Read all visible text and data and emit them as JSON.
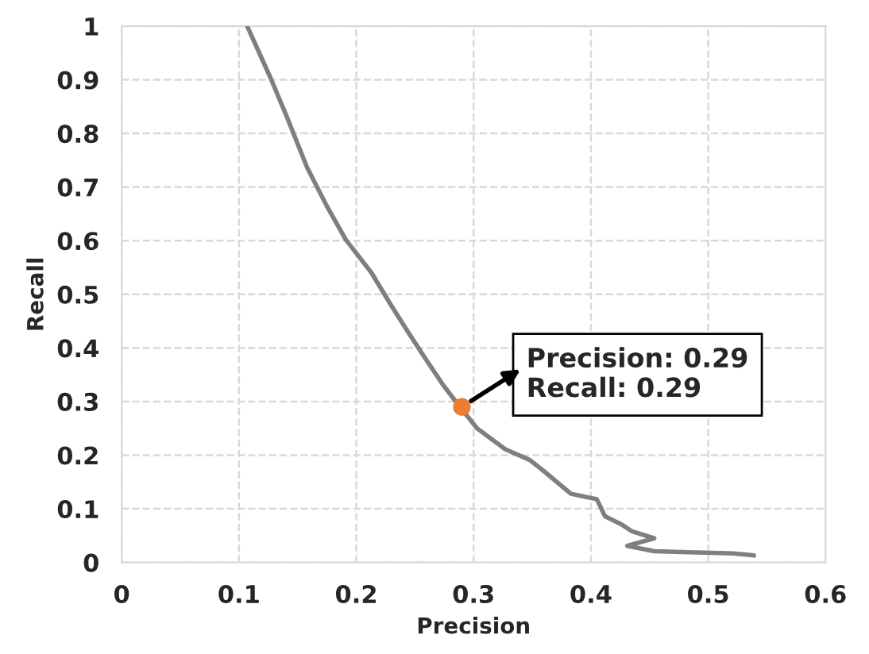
{
  "chart_data": {
    "type": "line",
    "xlabel": "Precision",
    "ylabel": "Recall",
    "xlim": [
      0,
      0.6
    ],
    "xticks": [
      0,
      0.1,
      0.2,
      0.3,
      0.4,
      0.5,
      0.6
    ],
    "ylim": [
      0,
      1
    ],
    "yticks": [
      0,
      0.1,
      0.2,
      0.3,
      0.4,
      0.5,
      0.6,
      0.7,
      0.8,
      0.9,
      1
    ],
    "grid": true,
    "line_style": "solid",
    "series": [
      {
        "type": "line",
        "color": "#7f7f7f",
        "marker": "none",
        "x": [
          0.107,
          0.127,
          0.141,
          0.158,
          0.175,
          0.191,
          0.213,
          0.229,
          0.244,
          0.258,
          0.274,
          0.289,
          0.303,
          0.327,
          0.348,
          0.36,
          0.383,
          0.405,
          0.412,
          0.426,
          0.435,
          0.454,
          0.431,
          0.454,
          0.483,
          0.521,
          0.539
        ],
        "values": [
          1.0,
          0.903,
          0.83,
          0.737,
          0.664,
          0.602,
          0.54,
          0.482,
          0.43,
          0.383,
          0.331,
          0.288,
          0.25,
          0.211,
          0.191,
          0.17,
          0.128,
          0.118,
          0.086,
          0.071,
          0.058,
          0.045,
          0.031,
          0.021,
          0.019,
          0.017,
          0.013
        ]
      },
      {
        "type": "scatter",
        "color": "#ed7d31",
        "marker": "circle",
        "x": [
          0.29
        ],
        "values": [
          0.29
        ]
      }
    ],
    "annotations": [
      {
        "text": "Precision: 0.29\nRecall: 0.29",
        "x": 0.29,
        "y": 0.29
      }
    ]
  }
}
